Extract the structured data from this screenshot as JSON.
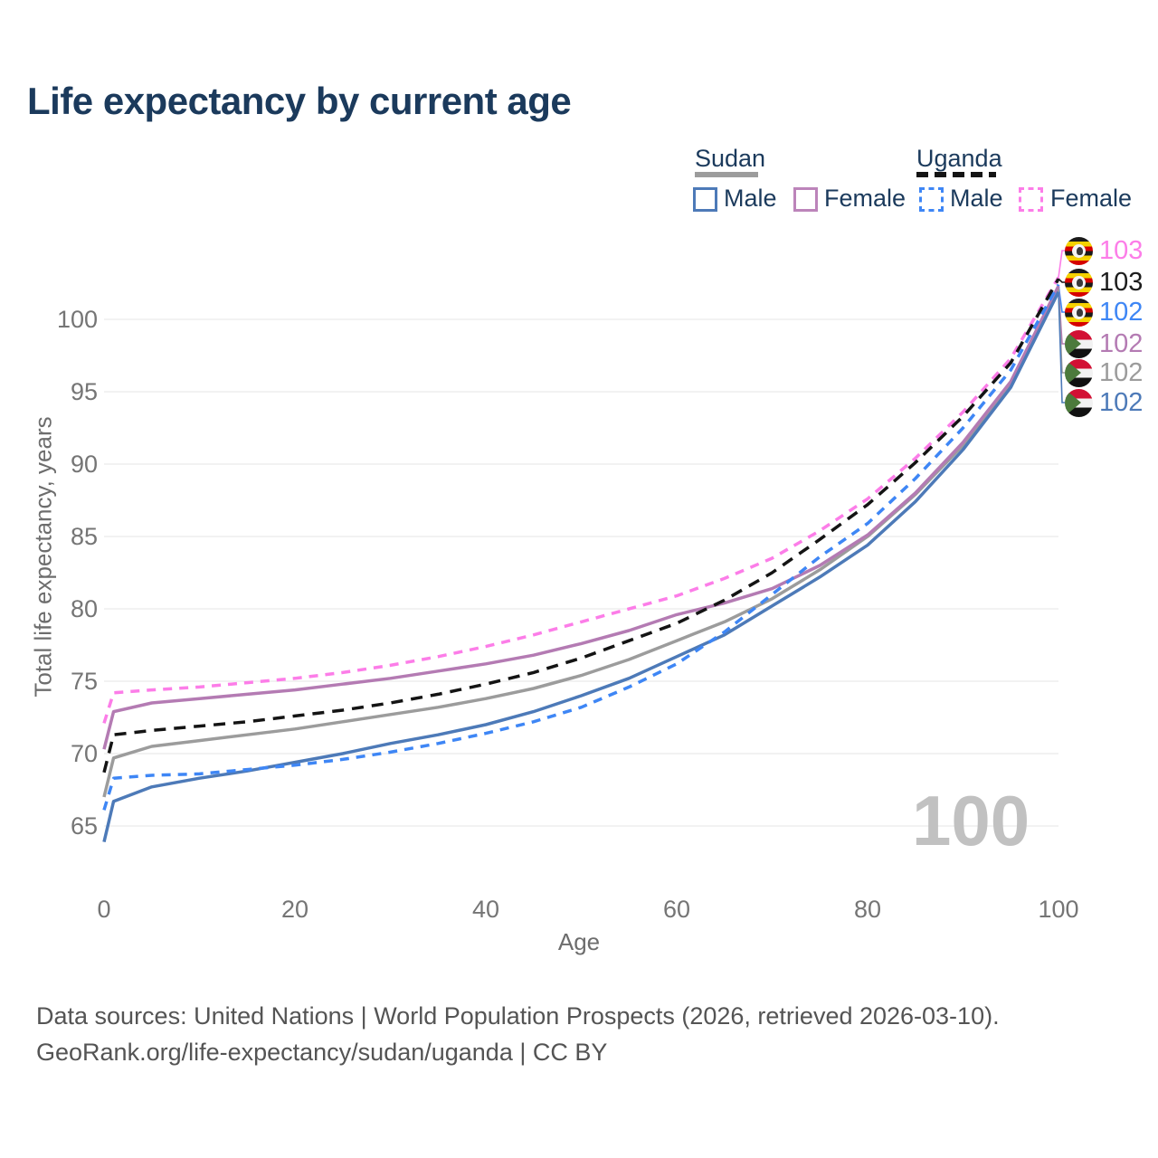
{
  "title": "Life expectancy by current age",
  "legend": {
    "sudan_label": "Sudan",
    "uganda_label": "Uganda",
    "sudan_male_label": "Male",
    "sudan_female_label": "Female",
    "uganda_male_label": "Male",
    "uganda_female_label": "Female"
  },
  "footer": {
    "line1": "Data sources: United Nations | World Population Prospects (2026, retrieved 2026-03-10).",
    "line2": "GeoRank.org/life-expectancy/sudan/uganda | CC BY"
  },
  "hover_age_label": "100",
  "chart_data": {
    "type": "line",
    "title": "Life expectancy by current age",
    "xlabel": "Age",
    "ylabel": "Total life expectancy, years",
    "xlim": [
      0,
      100
    ],
    "ylim": [
      63,
      104
    ],
    "x_ticks": [
      0,
      20,
      40,
      60,
      80,
      100
    ],
    "y_ticks": [
      65,
      70,
      75,
      80,
      85,
      90,
      95,
      100
    ],
    "grid": "horizontal only, light gray",
    "legend_position": "top-right",
    "x": [
      0,
      1,
      5,
      10,
      15,
      20,
      25,
      30,
      35,
      40,
      45,
      50,
      55,
      60,
      65,
      70,
      75,
      80,
      85,
      90,
      95,
      100
    ],
    "series": [
      {
        "key": "sudan_total",
        "name": "Sudan Total",
        "country": "Sudan",
        "style": "solid",
        "color": "#9c9c9c",
        "values": [
          67.0,
          69.7,
          70.5,
          70.9,
          71.3,
          71.7,
          72.2,
          72.7,
          73.2,
          73.8,
          74.5,
          75.4,
          76.5,
          77.8,
          79.1,
          80.7,
          82.7,
          85.0,
          87.9,
          91.3,
          95.5,
          102.1
        ]
      },
      {
        "key": "sudan_female",
        "name": "Sudan Female",
        "country": "Sudan",
        "style": "solid",
        "color": "#b47bb3",
        "values": [
          70.3,
          72.9,
          73.5,
          73.8,
          74.1,
          74.4,
          74.8,
          75.2,
          75.7,
          76.2,
          76.8,
          77.6,
          78.5,
          79.6,
          80.4,
          81.4,
          83.0,
          85.1,
          88.0,
          91.5,
          95.7,
          102.3
        ]
      },
      {
        "key": "sudan_male",
        "name": "Sudan Male",
        "country": "Sudan",
        "style": "solid",
        "color": "#4d7ab8",
        "values": [
          63.9,
          66.7,
          67.7,
          68.3,
          68.8,
          69.4,
          70.0,
          70.7,
          71.3,
          72.0,
          72.9,
          74.0,
          75.2,
          76.7,
          78.2,
          80.2,
          82.2,
          84.4,
          87.4,
          91.0,
          95.3,
          101.9
        ]
      },
      {
        "key": "uganda_female",
        "name": "Uganda Female",
        "country": "Uganda",
        "style": "dashed",
        "color": "#fc7de8",
        "values": [
          72.1,
          74.2,
          74.4,
          74.6,
          74.9,
          75.2,
          75.6,
          76.1,
          76.7,
          77.4,
          78.2,
          79.1,
          80.0,
          80.9,
          82.1,
          83.5,
          85.4,
          87.6,
          90.4,
          93.6,
          97.3,
          102.9
        ]
      },
      {
        "key": "uganda_male",
        "name": "Uganda Male",
        "country": "Uganda",
        "style": "dashed",
        "color": "#3e86f5",
        "values": [
          66.1,
          68.3,
          68.5,
          68.6,
          68.9,
          69.2,
          69.6,
          70.1,
          70.7,
          71.4,
          72.2,
          73.2,
          74.6,
          76.2,
          78.4,
          81.0,
          83.6,
          85.9,
          89.0,
          92.5,
          96.5,
          102.4
        ]
      },
      {
        "key": "uganda_total",
        "name": "Uganda Total",
        "country": "Uganda",
        "style": "dashed",
        "color": "#141414",
        "values": [
          68.7,
          71.3,
          71.6,
          71.9,
          72.2,
          72.6,
          73.0,
          73.5,
          74.1,
          74.8,
          75.6,
          76.6,
          77.8,
          79.0,
          80.6,
          82.5,
          84.8,
          87.2,
          90.1,
          93.3,
          97.0,
          102.8
        ]
      }
    ],
    "end_labels": [
      {
        "series": "uganda_female",
        "country": "Uganda",
        "value": "103",
        "color": "#fc7de8"
      },
      {
        "series": "uganda_total",
        "country": "Uganda",
        "value": "103",
        "color": "#1c1c1c"
      },
      {
        "series": "uganda_male",
        "country": "Uganda",
        "value": "102",
        "color": "#3e86f5"
      },
      {
        "series": "sudan_female",
        "country": "Sudan",
        "value": "102",
        "color": "#b47bb3"
      },
      {
        "series": "sudan_total",
        "country": "Sudan",
        "value": "102",
        "color": "#9c9c9c"
      },
      {
        "series": "sudan_male",
        "country": "Sudan",
        "value": "102",
        "color": "#4d7ab8"
      }
    ]
  }
}
